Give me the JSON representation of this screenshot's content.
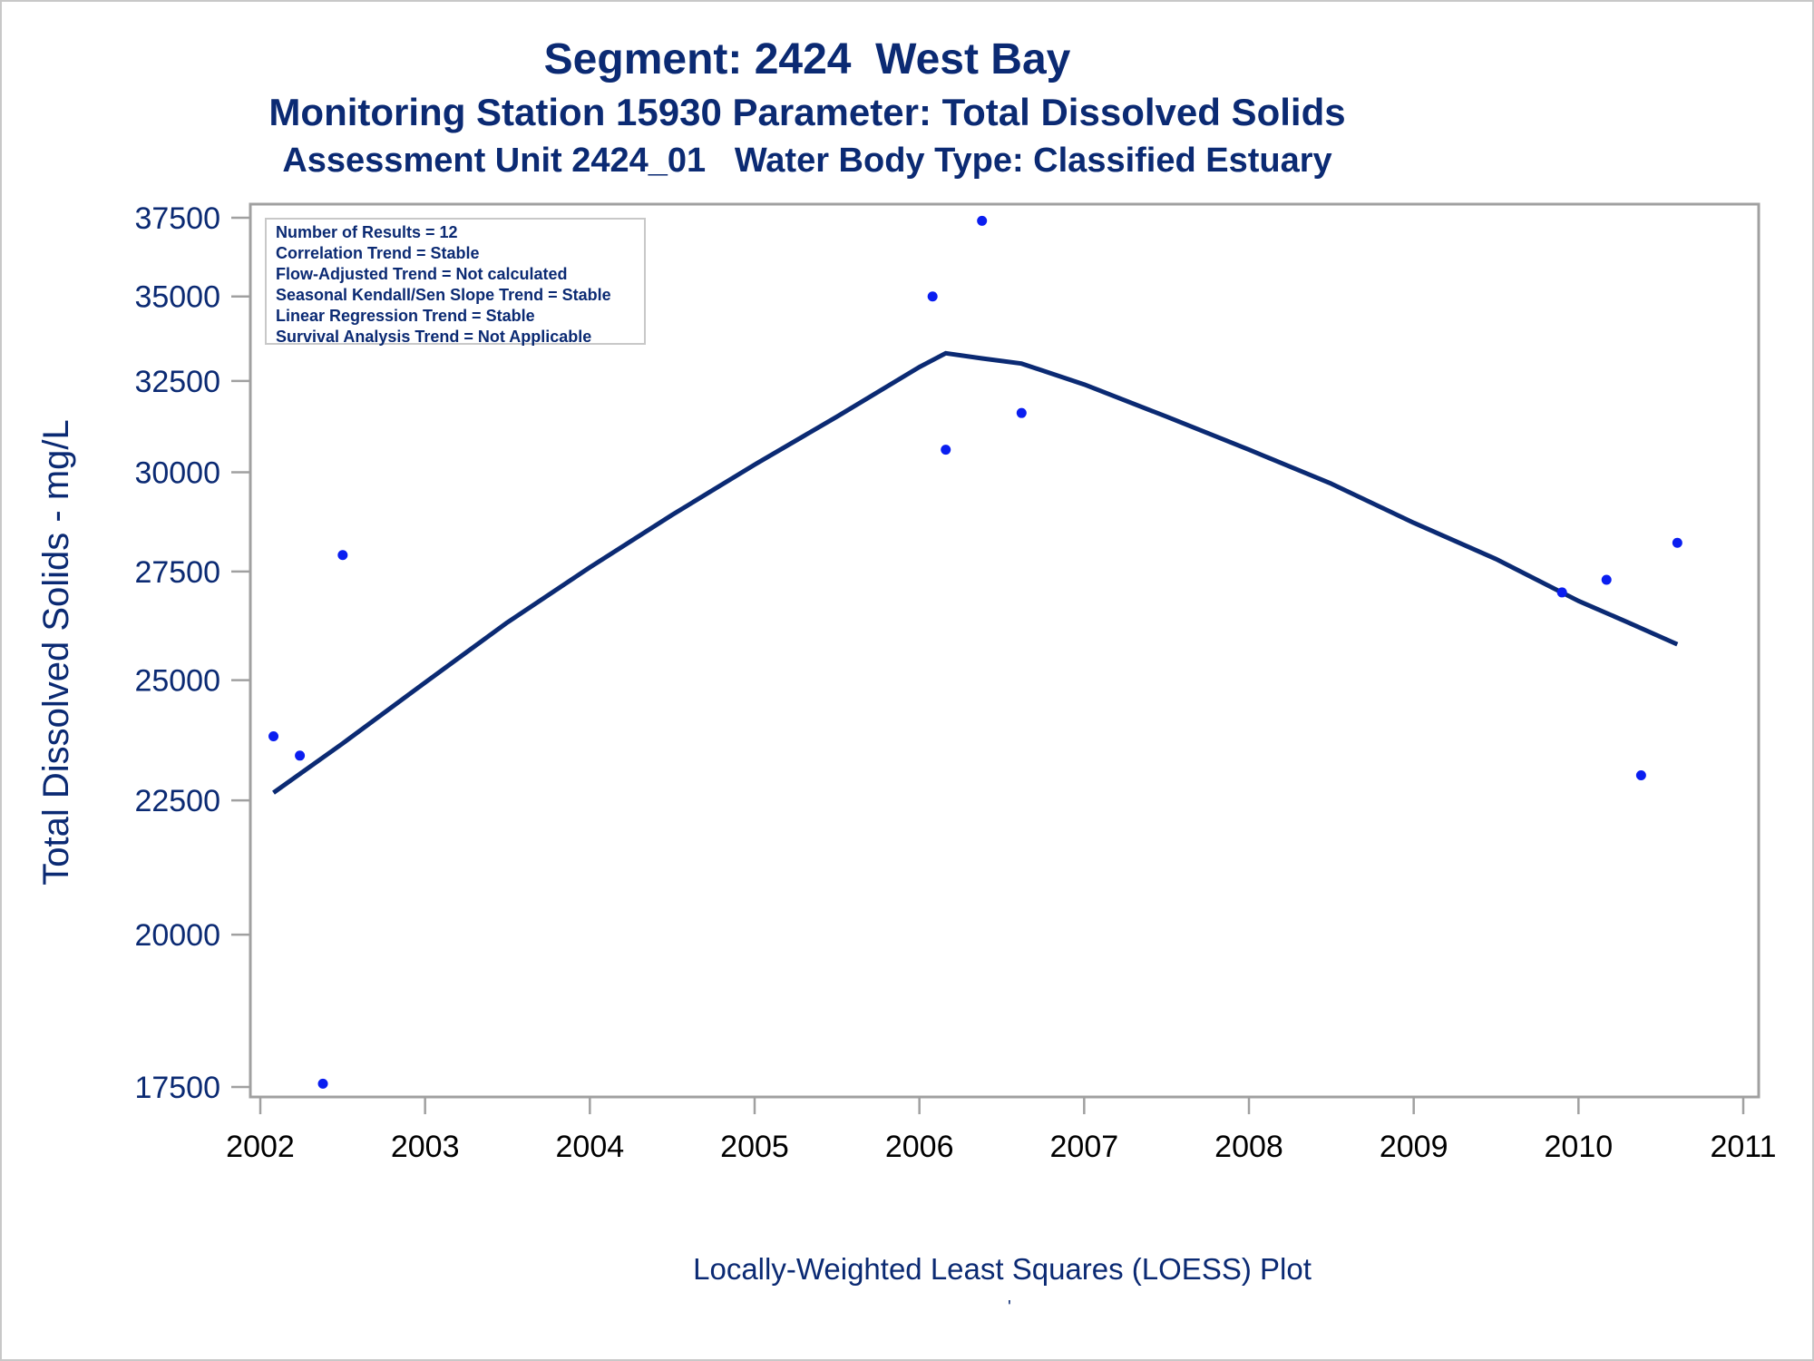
{
  "titles": {
    "line1": "Segment: 2424  West Bay",
    "line2": "Monitoring Station 15930 Parameter: Total Dissolved Solids",
    "line3": "Assessment Unit 2424_01   Water Body Type: Classified Estuary"
  },
  "stats_box": [
    "Number of Results = 12",
    "Correlation Trend = Stable",
    "Flow-Adjusted Trend = Not calculated",
    "Seasonal Kendall/Sen Slope Trend = Stable",
    "Linear Regression Trend = Stable",
    "Survival Analysis Trend = Not Applicable"
  ],
  "footer_mark": "'",
  "colors": {
    "text": "#0b2a73",
    "points": "#0a1ef0",
    "line": "#0b2a73",
    "frame": "#a0a0a0"
  },
  "chart_data": {
    "type": "scatter",
    "title": "Segment: 2424  West Bay",
    "xlabel": "Locally-Weighted Least Squares (LOESS) Plot",
    "ylabel": "Total Dissolved Solids - mg/L",
    "xlim": [
      2002,
      2011
    ],
    "ylim": [
      17500,
      37500
    ],
    "yscale": "log",
    "x_ticks": [
      2002,
      2003,
      2004,
      2005,
      2006,
      2007,
      2008,
      2009,
      2010,
      2011
    ],
    "y_ticks": [
      17500,
      20000,
      22500,
      25000,
      27500,
      30000,
      32500,
      35000,
      37500
    ],
    "grid": false,
    "series": [
      {
        "kind": "points",
        "x": [
          2002.08,
          2002.24,
          2002.38,
          2002.5,
          2006.08,
          2006.16,
          2006.38,
          2006.62,
          2009.9,
          2010.17,
          2010.38,
          2010.6
        ],
        "y": [
          23800,
          23400,
          17550,
          27900,
          35000,
          30600,
          37400,
          31600,
          27000,
          27300,
          23000,
          28200
        ]
      },
      {
        "kind": "loess",
        "x": [
          2002.08,
          2002.5,
          2003.0,
          2003.5,
          2004.0,
          2004.5,
          2005.0,
          2005.5,
          2006.0,
          2006.16,
          2006.38,
          2006.62,
          2007.0,
          2007.5,
          2008.0,
          2008.5,
          2009.0,
          2009.5,
          2010.0,
          2010.3,
          2010.6
        ],
        "y": [
          22650,
          23650,
          24950,
          26300,
          27600,
          28900,
          30200,
          31500,
          32900,
          33300,
          33150,
          33000,
          32400,
          31500,
          30600,
          29700,
          28700,
          27800,
          26800,
          26300,
          25800
        ]
      }
    ]
  }
}
